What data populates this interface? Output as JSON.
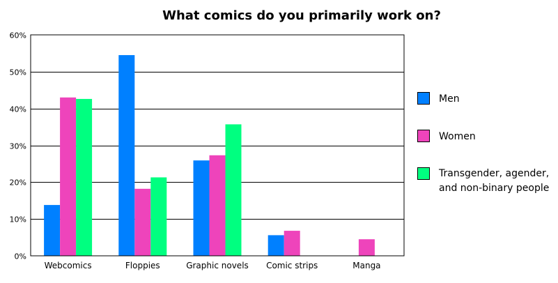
{
  "chart_data": {
    "type": "bar",
    "title": "What comics do you primarily work on?",
    "xlabel": "",
    "ylabel": "",
    "ylim": [
      0,
      60
    ],
    "yticks": [
      0,
      10,
      20,
      30,
      40,
      50,
      60
    ],
    "ytick_labels": [
      "0%",
      "10%",
      "20%",
      "30%",
      "40%",
      "50%",
      "60%"
    ],
    "grid": "horizontal",
    "legend_position": "right",
    "categories": [
      "Webcomics",
      "Floppies",
      "Graphic novels",
      "Comic strips",
      "Manga"
    ],
    "series": [
      {
        "name": "Men",
        "color": "#0080ff",
        "values": [
          13.8,
          54.5,
          25.9,
          5.6,
          0
        ]
      },
      {
        "name": "Women",
        "color": "#ee44bb",
        "values": [
          43.0,
          18.2,
          27.3,
          6.8,
          4.5
        ]
      },
      {
        "name": "Transgender, agender, and non-binary people",
        "color": "#00ff80",
        "values": [
          42.6,
          21.3,
          35.7,
          0,
          0
        ]
      }
    ],
    "legend_labels": [
      [
        "Men"
      ],
      [
        "Women"
      ],
      [
        "Transgender, agender,",
        "and non-binary people"
      ]
    ]
  }
}
